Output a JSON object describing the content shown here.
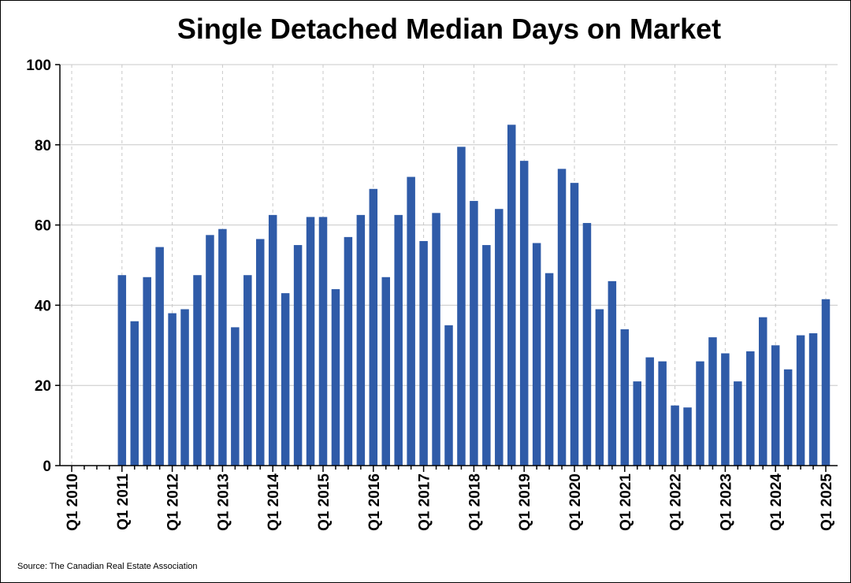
{
  "chart_data": {
    "type": "bar",
    "title": "Single Detached Median Days on Market",
    "source": "Source: The Canadian Real Estate Association",
    "xlabel": "",
    "ylabel": "",
    "ylim": [
      0,
      100
    ],
    "yticks": [
      0,
      20,
      40,
      60,
      80,
      100
    ],
    "xticks": [
      "Q1 2010",
      "Q1 2011",
      "Q1 2012",
      "Q1 2013",
      "Q1 2014",
      "Q1 2015",
      "Q1 2016",
      "Q1 2017",
      "Q1 2018",
      "Q1 2019",
      "Q1 2020",
      "Q1 2021",
      "Q1 2022",
      "Q1 2023",
      "Q1 2024",
      "Q1 2025"
    ],
    "grid": true,
    "bar_color": "#2f5ba8",
    "categories": [
      "Q1 2010",
      "Q2 2010",
      "Q3 2010",
      "Q4 2010",
      "Q1 2011",
      "Q2 2011",
      "Q3 2011",
      "Q4 2011",
      "Q1 2012",
      "Q2 2012",
      "Q3 2012",
      "Q4 2012",
      "Q1 2013",
      "Q2 2013",
      "Q3 2013",
      "Q4 2013",
      "Q1 2014",
      "Q2 2014",
      "Q3 2014",
      "Q4 2014",
      "Q1 2015",
      "Q2 2015",
      "Q3 2015",
      "Q4 2015",
      "Q1 2016",
      "Q2 2016",
      "Q3 2016",
      "Q4 2016",
      "Q1 2017",
      "Q2 2017",
      "Q3 2017",
      "Q4 2017",
      "Q1 2018",
      "Q2 2018",
      "Q3 2018",
      "Q4 2018",
      "Q1 2019",
      "Q2 2019",
      "Q3 2019",
      "Q4 2019",
      "Q1 2020",
      "Q2 2020",
      "Q3 2020",
      "Q4 2020",
      "Q1 2021",
      "Q2 2021",
      "Q3 2021",
      "Q4 2021",
      "Q1 2022",
      "Q2 2022",
      "Q3 2022",
      "Q4 2022",
      "Q1 2023",
      "Q2 2023",
      "Q3 2023",
      "Q4 2023",
      "Q1 2024",
      "Q2 2024",
      "Q3 2024",
      "Q4 2024",
      "Q1 2025"
    ],
    "values": [
      null,
      null,
      null,
      null,
      47.5,
      36,
      47,
      54.5,
      38,
      39,
      47.5,
      57.5,
      59,
      34.5,
      47.5,
      56.5,
      62.5,
      43,
      55,
      62,
      62,
      44,
      57,
      62.5,
      69,
      47,
      62.5,
      72,
      56,
      63,
      35,
      79.5,
      66,
      55,
      64,
      85,
      76,
      55.5,
      48,
      74,
      70.5,
      60.5,
      39,
      46,
      34,
      21,
      27,
      26,
      15,
      14.5,
      26,
      32,
      28,
      21,
      28.5,
      37,
      30,
      24,
      32.5,
      33,
      41.5
    ]
  }
}
